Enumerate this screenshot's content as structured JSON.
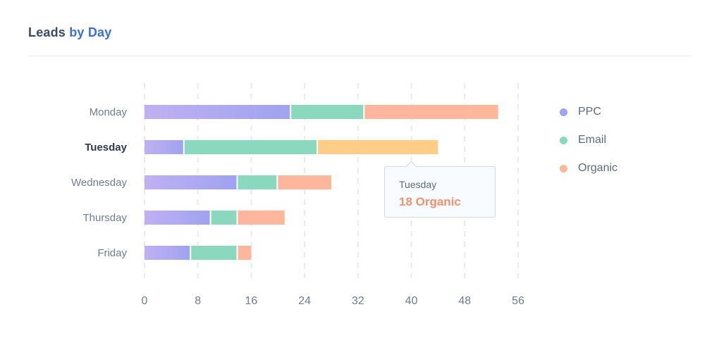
{
  "header": {
    "title_part1": "Leads",
    "title_part2": "by Day"
  },
  "chart_data": {
    "type": "bar",
    "orientation": "horizontal",
    "stacked": true,
    "categories": [
      "Monday",
      "Tuesday",
      "Wednesday",
      "Thursday",
      "Friday"
    ],
    "series": [
      {
        "name": "PPC",
        "values": [
          22,
          6,
          14,
          10,
          7
        ]
      },
      {
        "name": "Email",
        "values": [
          11,
          20,
          6,
          4,
          7
        ]
      },
      {
        "name": "Organic",
        "values": [
          20,
          18,
          8,
          7,
          2
        ]
      }
    ],
    "xlim": [
      0,
      56
    ],
    "xticks": [
      0,
      8,
      16,
      24,
      32,
      40,
      48,
      56
    ],
    "grid": "vertical-dashed",
    "legend_position": "right",
    "highlighted_category": "Tuesday",
    "highlighted_series": "Organic",
    "colors": {
      "PPC_start": "#c0b0f3",
      "PPC_end": "#9fa3f0",
      "Email": "#8ad8be",
      "Organic_start": "#ffb59e",
      "Organic_end": "#fdb89b",
      "Organic_highlight": "#ffcd88"
    }
  },
  "tooltip": {
    "category": "Tuesday",
    "value_text": "18 Organic"
  },
  "legend": [
    {
      "label": "PPC",
      "color": "#9fa3f0"
    },
    {
      "label": "Email",
      "color": "#8ad8be"
    },
    {
      "label": "Organic",
      "color": "#fdb89b"
    }
  ]
}
